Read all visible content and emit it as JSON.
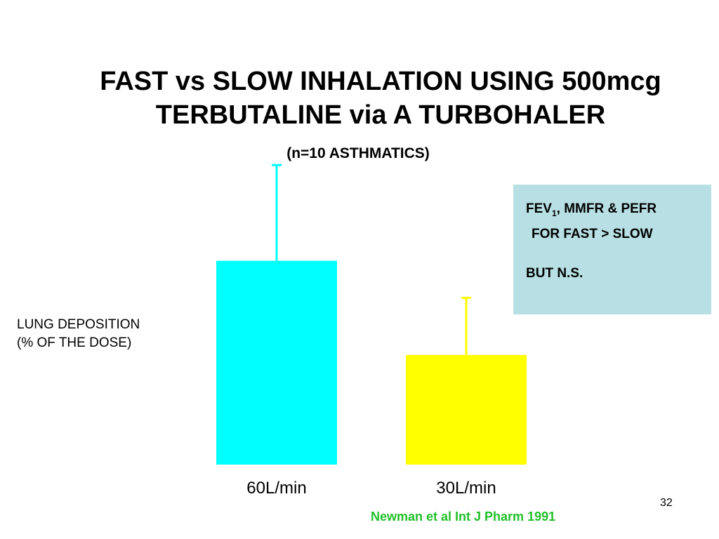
{
  "slide": {
    "title_line1": "FAST vs SLOW INHALATION USING 500mcg",
    "title_line2": "TERBUTALINE via A TURBOHALER",
    "subtitle": "(n=10 ASTHMATICS)",
    "ylabel_line1": "LUNG DEPOSITION",
    "ylabel_line2": "(% OF THE DOSE)",
    "note": {
      "line1_prefix": "FEV",
      "line1_sub": "1",
      "line1_suffix": ", MMFR & PEFR",
      "line2": "FOR FAST > SLOW",
      "line3": "BUT N.S."
    },
    "citation": "Newman et al Int J Pharm 1991",
    "page_number": "32"
  },
  "colors": {
    "bar_fast": "#00ffff",
    "bar_slow": "#ffff00",
    "error_fast": "#00ffff",
    "error_slow": "#ffff00",
    "note_background": "#b8e0e4",
    "citation": "#22c028"
  },
  "chart_data": {
    "type": "bar",
    "categories": [
      "60L/min",
      "30L/min"
    ],
    "values": [
      26.4,
      14.2
    ],
    "error_upper": [
      38.8,
      21.6
    ],
    "ylim": [
      0,
      40
    ],
    "grid": false,
    "axes_visible": false,
    "xlabel": "",
    "ylabel": "LUNG DEPOSITION (% OF THE DOSE)"
  }
}
